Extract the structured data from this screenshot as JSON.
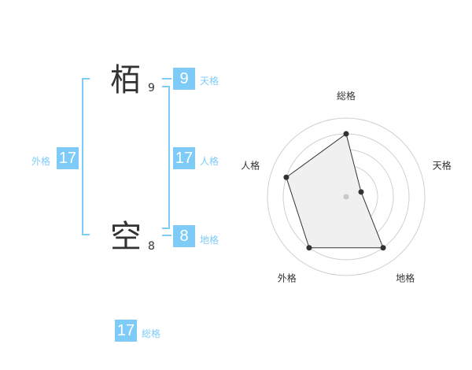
{
  "name": [
    {
      "char": "栢",
      "strokes": "9"
    },
    {
      "char": "空",
      "strokes": "8"
    }
  ],
  "fortunes": {
    "tenkaku": {
      "label": "天格",
      "value": "9"
    },
    "jinkaku": {
      "label": "人格",
      "value": "17"
    },
    "chikaku": {
      "label": "地格",
      "value": "8"
    },
    "gaikaku": {
      "label": "外格",
      "value": "17"
    },
    "soukaku": {
      "label": "総格",
      "value": "17"
    }
  },
  "colors": {
    "accent": "#7ecbf8",
    "fill": "#f0f0f0",
    "line": "#333333"
  },
  "chart_data": {
    "type": "radar",
    "axes": [
      "総格",
      "天格",
      "地格",
      "外格",
      "人格"
    ],
    "values": [
      4,
      1,
      4,
      4,
      4
    ],
    "range": [
      0,
      5
    ],
    "rings": 5
  }
}
